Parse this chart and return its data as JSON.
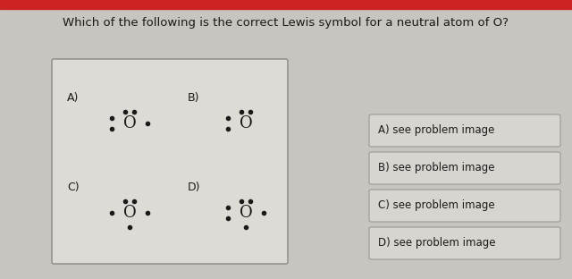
{
  "title": "Which of the following is the correct Lewis symbol for a neutral atom of O?",
  "title_fontsize": 9.5,
  "bg_color": "#c8c5c0",
  "box_bg": "#dedad5",
  "answer_bg": "#d8d5d0",
  "red_bar_color": "#cc2222",
  "answer_labels": [
    "A) see problem image",
    "B) see problem image",
    "C) see problem image",
    "D) see problem image"
  ],
  "text_color": "#1a1a1a",
  "dot_color": "#1a1a1a",
  "dot_size": 3.0,
  "O_fontsize": 13
}
